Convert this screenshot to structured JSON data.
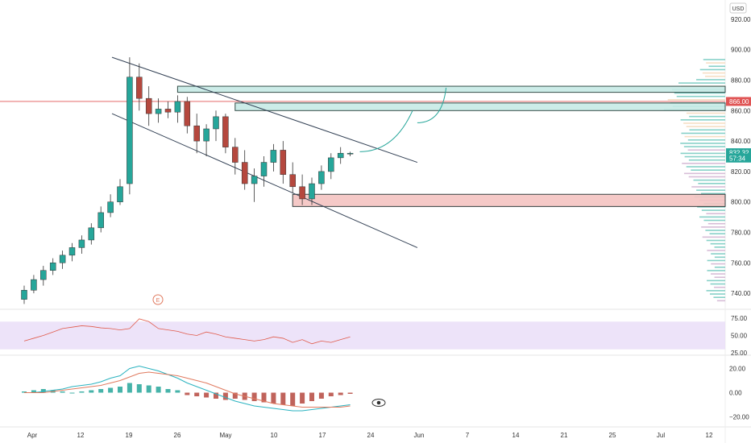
{
  "header": {
    "currency_label": "USD"
  },
  "colors": {
    "up": "#26a69a",
    "down": "#b5483e",
    "channel": "#334155",
    "resistance_fill": "#c7ebe6",
    "resistance_stroke": "#1e3a35",
    "support_fill": "#f4c4c2",
    "support_stroke": "#1e2a2a",
    "hline": "#e05555",
    "rsi_line": "#e05a4a",
    "rsi_band": "#e9dcf7",
    "macd_line": "#2bb3c0",
    "signal_line": "#e07a5f",
    "vp_up": "#5fc1b6",
    "vp_down": "#c9a7c9",
    "vp_upper": "#f3d3b0"
  },
  "price_axis": {
    "ticks": [
      {
        "value": 920,
        "label": "920.00"
      },
      {
        "value": 900,
        "label": "900.00"
      },
      {
        "value": 880,
        "label": "880.00"
      },
      {
        "value": 860,
        "label": "860.00"
      },
      {
        "value": 840,
        "label": "840.00"
      },
      {
        "value": 820,
        "label": "820.00"
      },
      {
        "value": 800,
        "label": "800.00"
      },
      {
        "value": 780,
        "label": "780.00"
      },
      {
        "value": 760,
        "label": "760.00"
      },
      {
        "value": 740,
        "label": "740.00"
      }
    ],
    "markers": [
      {
        "value": 866.0,
        "label": "866.00",
        "color": "#e05555"
      },
      {
        "value": 832.32,
        "label": "832.32",
        "color": "#26a69a"
      },
      {
        "value": 828.8,
        "label": "57:34",
        "color": "#26a69a"
      }
    ]
  },
  "rsi_axis": {
    "ticks": [
      {
        "value": 75,
        "label": "75.00"
      },
      {
        "value": 50,
        "label": "50.00"
      },
      {
        "value": 25,
        "label": "25.00"
      }
    ]
  },
  "macd_axis": {
    "ticks": [
      {
        "value": 20,
        "label": "20.00"
      },
      {
        "value": 0,
        "label": "0.00"
      },
      {
        "value": -20,
        "label": "−20.00"
      }
    ]
  },
  "time_axis": {
    "labels": [
      "Apr",
      "12",
      "19",
      "26",
      "May",
      "10",
      "17",
      "24",
      "Jun",
      "7",
      "14",
      "21",
      "25",
      "Jul",
      "12"
    ]
  },
  "earnings_marker": {
    "label": "E"
  },
  "chart_data": {
    "type": "candlestick",
    "x": [
      "Apr-05",
      "Apr-06",
      "Apr-07",
      "Apr-08",
      "Apr-09",
      "Apr-12",
      "Apr-13",
      "Apr-14",
      "Apr-15",
      "Apr-16",
      "Apr-19",
      "Apr-20",
      "Apr-21",
      "Apr-22",
      "Apr-23",
      "Apr-26",
      "Apr-27",
      "Apr-28",
      "Apr-29",
      "Apr-30",
      "May-03",
      "May-04",
      "May-05",
      "May-06",
      "May-07",
      "May-10",
      "May-11",
      "May-12",
      "May-13",
      "May-14",
      "May-17",
      "May-18",
      "May-19",
      "May-20",
      "May-21"
    ],
    "ohlc": [
      [
        736,
        745,
        733,
        742
      ],
      [
        742,
        752,
        740,
        749
      ],
      [
        749,
        758,
        745,
        755
      ],
      [
        755,
        763,
        752,
        760
      ],
      [
        760,
        768,
        756,
        765
      ],
      [
        765,
        773,
        761,
        770
      ],
      [
        770,
        778,
        766,
        775
      ],
      [
        775,
        786,
        772,
        783
      ],
      [
        783,
        797,
        780,
        793
      ],
      [
        793,
        805,
        790,
        800
      ],
      [
        800,
        815,
        798,
        810
      ],
      [
        812,
        895,
        805,
        882
      ],
      [
        882,
        891,
        860,
        868
      ],
      [
        868,
        876,
        850,
        858
      ],
      [
        858,
        868,
        852,
        861
      ],
      [
        861,
        866,
        855,
        859
      ],
      [
        859,
        870,
        852,
        866
      ],
      [
        866,
        869,
        845,
        850
      ],
      [
        850,
        858,
        832,
        840
      ],
      [
        840,
        851,
        830,
        848
      ],
      [
        848,
        860,
        840,
        856
      ],
      [
        856,
        858,
        832,
        836
      ],
      [
        836,
        842,
        818,
        826
      ],
      [
        826,
        834,
        808,
        812
      ],
      [
        812,
        822,
        800,
        817
      ],
      [
        817,
        830,
        810,
        826
      ],
      [
        826,
        838,
        820,
        834
      ],
      [
        834,
        840,
        812,
        818
      ],
      [
        818,
        826,
        806,
        810
      ],
      [
        810,
        818,
        798,
        802
      ],
      [
        802,
        816,
        798,
        812
      ],
      [
        812,
        824,
        808,
        820
      ],
      [
        820,
        832,
        815,
        829
      ],
      [
        829,
        836,
        825,
        832
      ],
      [
        832,
        833,
        830,
        832
      ]
    ],
    "channel": {
      "upper": {
        "start": [
          "Apr-19",
          895
        ],
        "end": [
          "Jun-02",
          826
        ]
      },
      "lower": {
        "start": [
          "Apr-19",
          858
        ],
        "end": [
          "Jun-02",
          770
        ]
      }
    },
    "zones": [
      {
        "name": "resistance-upper",
        "low": 872,
        "high": 876,
        "from": "Apr-27"
      },
      {
        "name": "resistance-lower",
        "low": 860,
        "high": 865,
        "from": "May-05"
      },
      {
        "name": "support",
        "low": 797,
        "high": 805,
        "from": "May-13"
      }
    ],
    "horizontal_line": 866,
    "projection": [
      [
        "May-24",
        833
      ],
      [
        "Jun-01",
        860
      ],
      [
        "Jun-02",
        852
      ],
      [
        "Jun-05",
        875
      ]
    ],
    "rsi": [
      42,
      46,
      50,
      55,
      60,
      62,
      64,
      63,
      61,
      60,
      58,
      60,
      74,
      70,
      60,
      58,
      56,
      52,
      50,
      55,
      52,
      48,
      46,
      44,
      42,
      44,
      48,
      46,
      40,
      44,
      38,
      42,
      40,
      44,
      48
    ],
    "macd": {
      "histogram": [
        1,
        2,
        3,
        2,
        1,
        0,
        1,
        2,
        3,
        4,
        5,
        8,
        7,
        6,
        5,
        3,
        2,
        -2,
        -3,
        -4,
        -5,
        -6,
        -5,
        -6,
        -7,
        -8,
        -9,
        -10,
        -11,
        -9,
        -7,
        -5,
        -3,
        -2,
        -1
      ],
      "macd_line": [
        0,
        0,
        1,
        2,
        3,
        5,
        6,
        7,
        9,
        12,
        14,
        20,
        22,
        20,
        18,
        15,
        12,
        8,
        5,
        2,
        -1,
        -4,
        -7,
        -9,
        -11,
        -12,
        -13,
        -14,
        -15,
        -15,
        -14,
        -13,
        -12,
        -11,
        -10
      ],
      "signal_line": [
        0,
        0,
        0,
        1,
        2,
        3,
        4,
        5,
        6,
        8,
        10,
        13,
        16,
        17,
        16,
        15,
        14,
        12,
        10,
        8,
        5,
        2,
        -1,
        -3,
        -5,
        -7,
        -9,
        -10,
        -11,
        -12,
        -12,
        -12,
        -12,
        -12,
        -11
      ]
    },
    "ylim_price": [
      730,
      930
    ],
    "ylim_rsi": [
      25,
      75
    ],
    "ylim_macd": [
      -25,
      25
    ]
  }
}
